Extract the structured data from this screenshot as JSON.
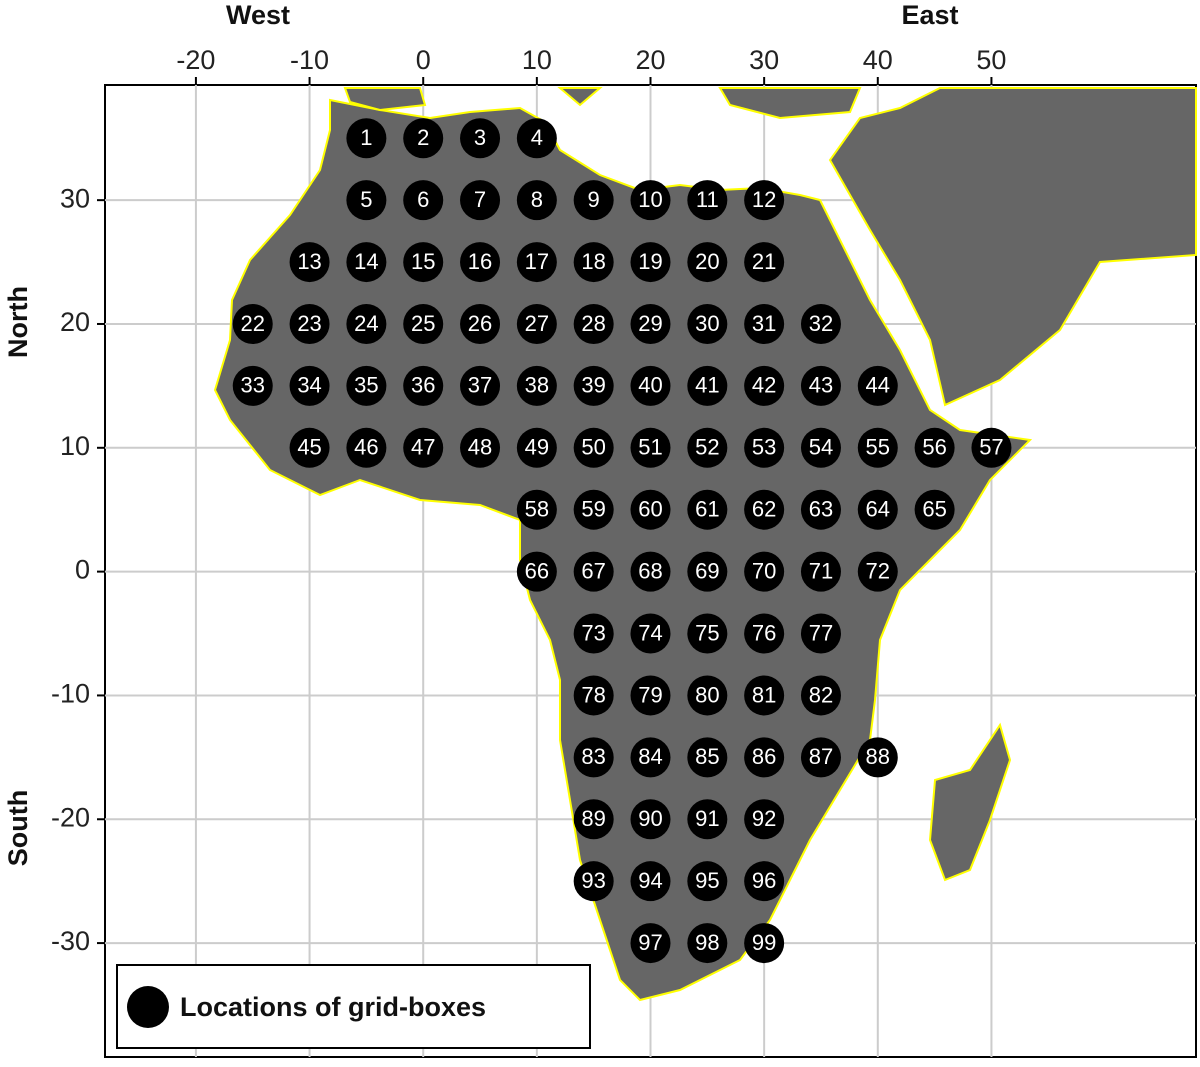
{
  "chart_data": {
    "type": "scatter",
    "annotations": [
      "West",
      "East",
      "North",
      "South"
    ],
    "xlim": [
      -28,
      68
    ],
    "xticks": [
      -20,
      -10,
      0,
      10,
      20,
      30,
      40,
      50
    ],
    "ylim": [
      -39.2,
      39.3
    ],
    "yticks": [
      30,
      20,
      10,
      0,
      -10,
      -20,
      -30
    ],
    "grid": true,
    "legend": "lower left",
    "series": [
      {
        "name": "Locations of grid-boxes",
        "color": "#000000",
        "point_labels": [
          "1",
          "2",
          "3",
          "4",
          "5",
          "6",
          "7",
          "8",
          "9",
          "10",
          "11",
          "12",
          "13",
          "14",
          "15",
          "16",
          "17",
          "18",
          "19",
          "20",
          "21",
          "22",
          "23",
          "24",
          "25",
          "26",
          "27",
          "28",
          "29",
          "30",
          "31",
          "32",
          "33",
          "34",
          "35",
          "36",
          "37",
          "38",
          "39",
          "40",
          "41",
          "42",
          "43",
          "44",
          "45",
          "46",
          "47",
          "48",
          "49",
          "50",
          "51",
          "52",
          "53",
          "54",
          "55",
          "56",
          "57",
          "58",
          "59",
          "60",
          "61",
          "62",
          "63",
          "64",
          "65",
          "66",
          "67",
          "68",
          "69",
          "70",
          "71",
          "72",
          "73",
          "74",
          "75",
          "76",
          "77",
          "78",
          "79",
          "80",
          "81",
          "82",
          "83",
          "84",
          "85",
          "86",
          "87",
          "88",
          "89",
          "90",
          "91",
          "92",
          "93",
          "94",
          "95",
          "96",
          "97",
          "98",
          "99"
        ],
        "x": [
          -5,
          0,
          5,
          10,
          -5,
          0,
          5,
          10,
          15,
          20,
          25,
          30,
          -10,
          -5,
          0,
          5,
          10,
          15,
          20,
          25,
          30,
          -15,
          -10,
          -5,
          0,
          5,
          10,
          15,
          20,
          25,
          30,
          35,
          -15,
          -10,
          -5,
          0,
          5,
          10,
          15,
          20,
          25,
          30,
          35,
          40,
          -10,
          -5,
          0,
          5,
          10,
          15,
          20,
          25,
          30,
          35,
          40,
          45,
          50,
          10,
          15,
          20,
          25,
          30,
          35,
          40,
          45,
          10,
          15,
          20,
          25,
          30,
          35,
          40,
          15,
          20,
          25,
          30,
          35,
          15,
          20,
          25,
          30,
          35,
          15,
          20,
          25,
          30,
          35,
          40,
          15,
          20,
          25,
          30,
          15,
          20,
          25,
          30,
          20,
          25,
          30
        ],
        "values": [
          35,
          35,
          35,
          35,
          30,
          30,
          30,
          30,
          30,
          30,
          30,
          30,
          25,
          25,
          25,
          25,
          25,
          25,
          25,
          25,
          25,
          20,
          20,
          20,
          20,
          20,
          20,
          20,
          20,
          20,
          20,
          20,
          15,
          15,
          15,
          15,
          15,
          15,
          15,
          15,
          15,
          15,
          15,
          15,
          10,
          10,
          10,
          10,
          10,
          10,
          10,
          10,
          10,
          10,
          10,
          10,
          10,
          5,
          5,
          5,
          5,
          5,
          5,
          5,
          5,
          0,
          0,
          0,
          0,
          0,
          0,
          0,
          -5,
          -5,
          -5,
          -5,
          -5,
          -10,
          -10,
          -10,
          -10,
          -10,
          -15,
          -15,
          -15,
          -15,
          -15,
          -15,
          -20,
          -20,
          -20,
          -20,
          -25,
          -25,
          -25,
          -25,
          -30,
          -30,
          -30
        ]
      }
    ]
  }
}
